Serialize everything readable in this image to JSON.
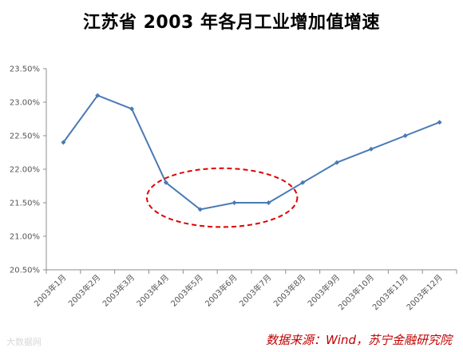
{
  "chart_data": {
    "type": "line",
    "title": "江苏省 2003 年各月工业增加值增速",
    "categories": [
      "2003年1月",
      "2003年2月",
      "2003年3月",
      "2003年4月",
      "2003年5月",
      "2003年6月",
      "2003年7月",
      "2003年8月",
      "2003年9月",
      "2003年10月",
      "2003年11月",
      "2003年12月"
    ],
    "series": [
      {
        "values": [
          22.4,
          23.1,
          22.9,
          21.8,
          21.4,
          21.5,
          21.5,
          21.8,
          22.1,
          22.3,
          22.5,
          22.7
        ]
      }
    ],
    "ylim": [
      20.5,
      23.5
    ],
    "yticks": [
      "20.50%",
      "21.00%",
      "21.50%",
      "22.00%",
      "22.50%",
      "23.00%",
      "23.50%"
    ],
    "grid": false,
    "line_color": "#4a7ab5",
    "highlight_color": "#e00000",
    "highlight_range": [
      "2003年4月",
      "2003年7月"
    ]
  },
  "source_note": "数据来源：Wind，苏宁金融研究院",
  "watermark": "大数据网"
}
